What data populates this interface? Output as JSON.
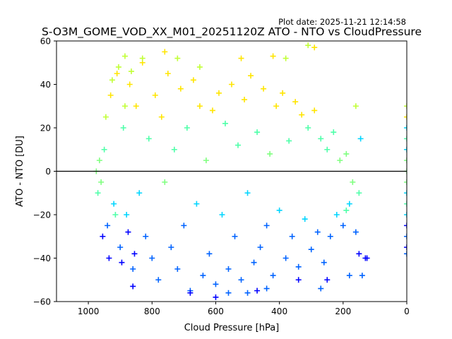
{
  "plot_date": "Plot date: 2025-11-21 12:14:58",
  "chart_data": {
    "type": "scatter",
    "title": "S-O3M_GOME_VOD_XX_M01_20251120Z ATO - NTO vs CloudPressure",
    "xlabel": "Cloud Pressure [hPa]",
    "ylabel": "ATO - NTO [DU]",
    "xlim": [
      1100,
      0
    ],
    "ylim": [
      -60,
      60
    ],
    "xticks": [
      1000,
      800,
      600,
      400,
      200,
      0
    ],
    "yticks": [
      60,
      40,
      20,
      0,
      -20,
      -40,
      -60
    ],
    "reference_line_y": 0,
    "marker": "+",
    "colors": [
      "#00007f",
      "#0000ff",
      "#0063ff",
      "#00d5ff",
      "#4effa9",
      "#7fff7f",
      "#c1ff36",
      "#ffe500",
      "#ff9800"
    ],
    "series": [
      {
        "name": "main_cloud",
        "points": [
          [
            960,
            -5
          ],
          [
            950,
            10
          ],
          [
            940,
            -25
          ],
          [
            930,
            35
          ],
          [
            920,
            -15
          ],
          [
            910,
            45
          ],
          [
            900,
            -35
          ],
          [
            890,
            20
          ],
          [
            880,
            -20
          ],
          [
            870,
            40
          ],
          [
            860,
            -45
          ],
          [
            850,
            30
          ],
          [
            840,
            -10
          ],
          [
            830,
            50
          ],
          [
            820,
            -30
          ],
          [
            810,
            15
          ],
          [
            800,
            -40
          ],
          [
            790,
            35
          ],
          [
            780,
            -50
          ],
          [
            770,
            25
          ],
          [
            760,
            -5
          ],
          [
            750,
            45
          ],
          [
            740,
            -35
          ],
          [
            730,
            10
          ],
          [
            720,
            -45
          ],
          [
            710,
            38
          ],
          [
            700,
            -25
          ],
          [
            690,
            20
          ],
          [
            680,
            -55
          ],
          [
            670,
            42
          ],
          [
            660,
            -15
          ],
          [
            650,
            30
          ],
          [
            640,
            -48
          ],
          [
            630,
            5
          ],
          [
            620,
            -38
          ],
          [
            610,
            28
          ],
          [
            600,
            -52
          ],
          [
            590,
            36
          ],
          [
            580,
            -20
          ],
          [
            570,
            22
          ],
          [
            560,
            -45
          ],
          [
            550,
            40
          ],
          [
            540,
            -30
          ],
          [
            530,
            12
          ],
          [
            520,
            -50
          ],
          [
            510,
            33
          ],
          [
            500,
            -10
          ],
          [
            490,
            44
          ],
          [
            480,
            -42
          ],
          [
            470,
            18
          ],
          [
            460,
            -35
          ],
          [
            450,
            38
          ],
          [
            440,
            -25
          ],
          [
            430,
            8
          ],
          [
            420,
            -48
          ],
          [
            410,
            30
          ],
          [
            400,
            -18
          ],
          [
            390,
            36
          ],
          [
            380,
            -40
          ],
          [
            370,
            14
          ],
          [
            360,
            -30
          ],
          [
            350,
            32
          ],
          [
            340,
            -44
          ],
          [
            330,
            26
          ],
          [
            320,
            -22
          ],
          [
            310,
            20
          ],
          [
            300,
            -36
          ],
          [
            290,
            28
          ],
          [
            280,
            -28
          ],
          [
            270,
            15
          ],
          [
            260,
            -42
          ],
          [
            250,
            10
          ],
          [
            240,
            -30
          ],
          [
            230,
            18
          ],
          [
            220,
            -20
          ],
          [
            210,
            5
          ],
          [
            200,
            -25
          ],
          [
            190,
            8
          ],
          [
            180,
            -15
          ],
          [
            170,
            -5
          ],
          [
            160,
            -28
          ],
          [
            150,
            -10
          ],
          [
            145,
            15
          ],
          [
            130,
            -40
          ],
          [
            965,
            5
          ],
          [
            970,
            -10
          ],
          [
            975,
            0
          ],
          [
            955,
            -30
          ],
          [
            945,
            25
          ],
          [
            935,
            -40
          ],
          [
            925,
            42
          ],
          [
            915,
            -20
          ],
          [
            905,
            48
          ],
          [
            895,
            -42
          ],
          [
            885,
            30
          ],
          [
            875,
            -28
          ],
          [
            865,
            46
          ],
          [
            855,
            -38
          ]
        ]
      },
      {
        "name": "outliers",
        "points": [
          [
            885,
            53
          ],
          [
            860,
            -53
          ],
          [
            830,
            52
          ],
          [
            760,
            55
          ],
          [
            720,
            52
          ],
          [
            680,
            -56
          ],
          [
            650,
            48
          ],
          [
            600,
            -58
          ],
          [
            560,
            -56
          ],
          [
            520,
            52
          ],
          [
            500,
            -56
          ],
          [
            470,
            -55
          ],
          [
            440,
            -54
          ],
          [
            420,
            53
          ],
          [
            380,
            52
          ],
          [
            340,
            -50
          ],
          [
            310,
            58
          ],
          [
            290,
            57
          ],
          [
            270,
            -54
          ],
          [
            250,
            -50
          ],
          [
            180,
            -48
          ],
          [
            150,
            -38
          ],
          [
            140,
            -48
          ],
          [
            125,
            -40
          ],
          [
            160,
            30
          ],
          [
            190,
            -18
          ]
        ]
      },
      {
        "name": "zero_pressure_column",
        "points": [
          [
            0,
            30
          ],
          [
            0,
            25
          ],
          [
            0,
            20
          ],
          [
            0,
            15
          ],
          [
            0,
            10
          ],
          [
            0,
            5
          ],
          [
            0,
            0
          ],
          [
            0,
            -5
          ],
          [
            0,
            -10
          ],
          [
            0,
            -15
          ],
          [
            0,
            -20
          ],
          [
            0,
            -25
          ],
          [
            0,
            -30
          ],
          [
            0,
            -35
          ],
          [
            0,
            -38
          ]
        ]
      }
    ]
  }
}
